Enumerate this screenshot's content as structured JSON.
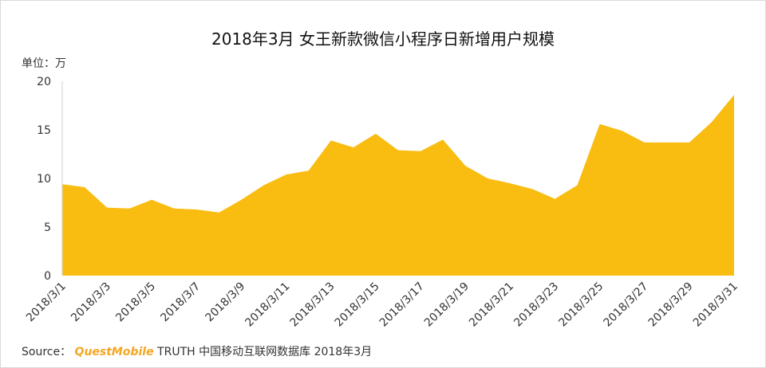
{
  "chart_data": {
    "type": "area",
    "title": "2018年3月 女王新款微信小程序日新增用户规模",
    "ylabel": "单位：万",
    "ylim": [
      0,
      20
    ],
    "yticks": [
      0,
      5,
      10,
      15,
      20
    ],
    "color": "#F9BC10",
    "categories": [
      "2018/3/1",
      "2018/3/2",
      "2018/3/3",
      "2018/3/4",
      "2018/3/5",
      "2018/3/6",
      "2018/3/7",
      "2018/3/8",
      "2018/3/9",
      "2018/3/10",
      "2018/3/11",
      "2018/3/12",
      "2018/3/13",
      "2018/3/14",
      "2018/3/15",
      "2018/3/16",
      "2018/3/17",
      "2018/3/18",
      "2018/3/19",
      "2018/3/20",
      "2018/3/21",
      "2018/3/22",
      "2018/3/23",
      "2018/3/24",
      "2018/3/25",
      "2018/3/26",
      "2018/3/27",
      "2018/3/28",
      "2018/3/29",
      "2018/3/30",
      "2018/3/31"
    ],
    "tick_labels": [
      "2018/3/1",
      "2018/3/3",
      "2018/3/5",
      "2018/3/7",
      "2018/3/9",
      "2018/3/11",
      "2018/3/13",
      "2018/3/15",
      "2018/3/17",
      "2018/3/19",
      "2018/3/21",
      "2018/3/23",
      "2018/3/25",
      "2018/3/27",
      "2018/3/29",
      "2018/3/31"
    ],
    "values": [
      9.4,
      9.1,
      7.0,
      6.9,
      7.8,
      6.9,
      6.8,
      6.5,
      7.8,
      9.3,
      10.4,
      10.8,
      13.9,
      13.2,
      14.6,
      12.9,
      12.8,
      14.0,
      11.3,
      10.0,
      9.5,
      8.9,
      7.9,
      9.3,
      15.6,
      14.9,
      13.7,
      13.7,
      13.7,
      15.8,
      18.6
    ]
  },
  "source": {
    "prefix": "Source：",
    "brand": "QuestMobile",
    "text": "TRUTH 中国移动互联网数据库 2018年3月"
  }
}
